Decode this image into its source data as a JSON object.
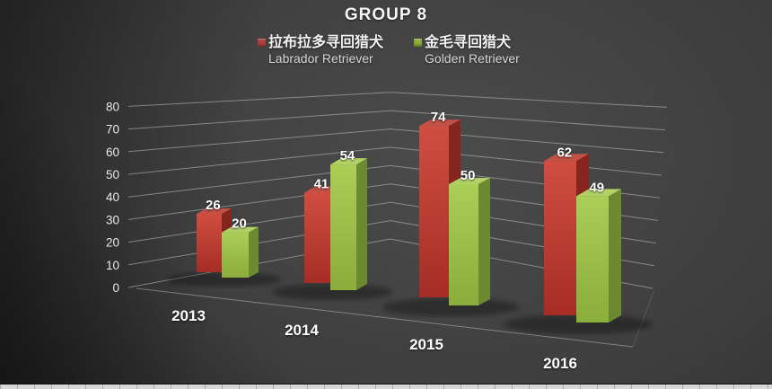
{
  "title": "GROUP 8",
  "legend": [
    {
      "label_cjk": "拉布拉多寻回猎犬",
      "label_en": "Labrador Retriever",
      "color": "#b04038"
    },
    {
      "label_cjk": "金毛寻回猎犬",
      "label_en": "Golden Retriever",
      "color": "#8fae3c"
    }
  ],
  "chart_data": {
    "type": "bar",
    "projection": "3d",
    "title": "GROUP 8",
    "categories": [
      "2013",
      "2014",
      "2015",
      "2016"
    ],
    "series": [
      {
        "name": "拉布拉多寻回猎犬 Labrador Retriever",
        "color": "#c0392b",
        "values": [
          26,
          41,
          74,
          62
        ]
      },
      {
        "name": "金毛寻回猎犬 Golden Retriever",
        "color": "#9acd32",
        "values": [
          20,
          54,
          50,
          49
        ]
      }
    ],
    "xlabel": "",
    "ylabel": "",
    "ylim": [
      0,
      80
    ],
    "ytick_step": 10,
    "grid": true,
    "legend_position": "top",
    "value_labels": true,
    "background": "#3e3e3e",
    "gridline_color": "#c3c3c3",
    "text_color": "#ffffff"
  }
}
